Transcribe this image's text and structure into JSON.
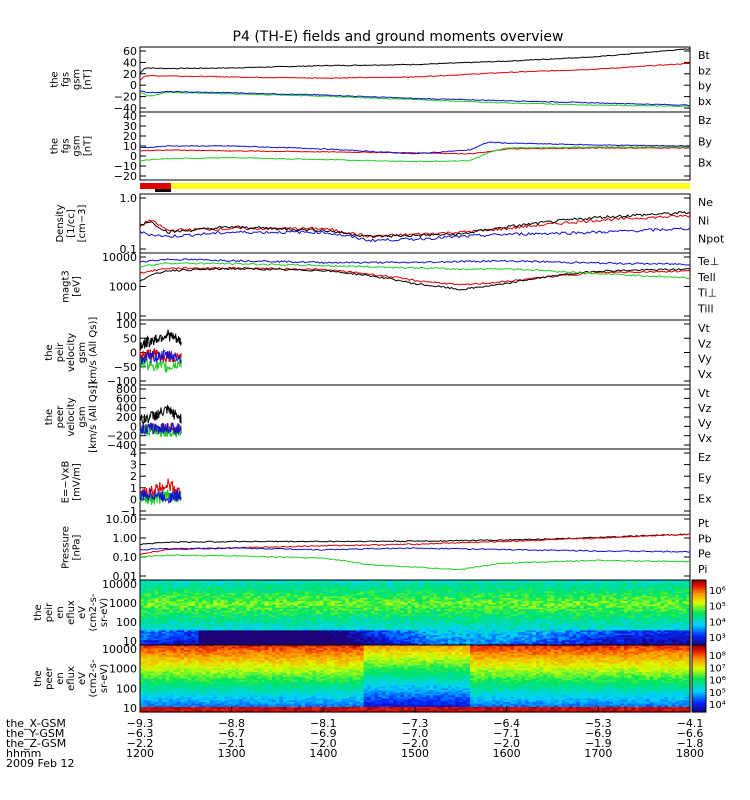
{
  "title": "P4 (TH-E) fields and ground moments overview",
  "colors": {
    "black": "#000000",
    "red": "#e00000",
    "green": "#22cc22",
    "blue": "#1010d0",
    "yellow": "#ffff20"
  },
  "chart_data": [
    {
      "type": "line",
      "id": "fgs-gsm",
      "ylabel": [
        "the",
        "fgs",
        "gsm",
        "[nT]"
      ],
      "yticks": [
        "60",
        "40",
        "20",
        "0",
        "−20",
        "−40"
      ],
      "ylim": [
        -50,
        65
      ],
      "series": [
        {
          "name": "Bt",
          "color": "#000000",
          "x": [
            1200,
            1205,
            1230,
            1300,
            1400,
            1500,
            1600,
            1700,
            1800
          ],
          "y": [
            18,
            28,
            27,
            28,
            32,
            34,
            40,
            48,
            62
          ]
        },
        {
          "name": "bz",
          "color": "#e00000",
          "x": [
            1200,
            1205,
            1230,
            1300,
            1400,
            1500,
            1600,
            1700,
            1800
          ],
          "y": [
            6,
            14,
            14,
            12,
            10,
            12,
            20,
            26,
            36
          ]
        },
        {
          "name": "by",
          "color": "#22cc22",
          "x": [
            1200,
            1210,
            1230,
            1300,
            1400,
            1500,
            1600,
            1700,
            1800
          ],
          "y": [
            -14,
            -22,
            -15,
            -18,
            -22,
            -28,
            -34,
            -38,
            -40
          ]
        },
        {
          "name": "bx",
          "color": "#1010d0",
          "x": [
            1200,
            1210,
            1230,
            1300,
            1400,
            1500,
            1600,
            1700,
            1800
          ],
          "y": [
            -12,
            -16,
            -14,
            -16,
            -20,
            -26,
            -30,
            -34,
            -38
          ]
        }
      ]
    },
    {
      "type": "line",
      "id": "fgs-gsm-ssl",
      "ylabel": [
        "the",
        "fgs",
        "gsm",
        "[nT]"
      ],
      "yticks": [
        "40",
        "30",
        "20",
        "10",
        "0",
        "−10",
        "−20"
      ],
      "ylim": [
        -25,
        45
      ],
      "series": [
        {
          "name": "Bz",
          "color": "#e00000",
          "x": [
            1200,
            1230,
            1300,
            1400,
            1500,
            1560,
            1580,
            1600,
            1700,
            1800
          ],
          "y": [
            5,
            6,
            5,
            4,
            3,
            2,
            4,
            7,
            8,
            8
          ]
        },
        {
          "name": "By",
          "color": "#22cc22",
          "x": [
            1200,
            1230,
            1300,
            1400,
            1500,
            1560,
            1580,
            1600,
            1700,
            1800
          ],
          "y": [
            -5,
            -3,
            -2,
            -4,
            -6,
            -5,
            3,
            8,
            9,
            9
          ]
        },
        {
          "name": "Bx",
          "color": "#1010d0",
          "x": [
            1200,
            1230,
            1300,
            1400,
            1500,
            1560,
            1580,
            1600,
            1700,
            1800
          ],
          "y": [
            8,
            10,
            10,
            7,
            2,
            6,
            14,
            13,
            11,
            10
          ]
        }
      ]
    },
    {
      "type": "line",
      "id": "density",
      "log": true,
      "ylabel": [
        "Density",
        "[1/cc]",
        "[cm−3]"
      ],
      "yticks": [
        "1.0",
        "0.1"
      ],
      "ylim": [
        0.1,
        1.2
      ],
      "series": [
        {
          "name": "Ne",
          "color": "#e00000",
          "x": [
            1200,
            1210,
            1230,
            1300,
            1400,
            1450,
            1500,
            1550,
            1600,
            1700,
            1800
          ],
          "y": [
            0.3,
            0.4,
            0.26,
            0.28,
            0.28,
            0.2,
            0.22,
            0.24,
            0.28,
            0.4,
            0.48
          ]
        },
        {
          "name": "Ni",
          "color": "#000000",
          "x": [
            1200,
            1210,
            1230,
            1300,
            1400,
            1450,
            1500,
            1550,
            1600,
            1700,
            1800
          ],
          "y": [
            0.32,
            0.38,
            0.24,
            0.3,
            0.26,
            0.2,
            0.21,
            0.22,
            0.3,
            0.45,
            0.55
          ]
        },
        {
          "name": "Npot",
          "color": "#1010d0",
          "x": [
            1200,
            1210,
            1230,
            1300,
            1400,
            1450,
            1500,
            1550,
            1600,
            1700,
            1800
          ],
          "y": [
            0.24,
            0.22,
            0.2,
            0.24,
            0.24,
            0.17,
            0.18,
            0.2,
            0.22,
            0.24,
            0.28
          ]
        }
      ]
    },
    {
      "type": "line",
      "id": "temp",
      "log": true,
      "ylabel": [
        "magt3",
        "[eV]"
      ],
      "yticks": [
        "10000",
        "1000",
        "100"
      ],
      "ylim": [
        100,
        10000
      ],
      "series": [
        {
          "name": "Te⊥",
          "color": "#e00000",
          "x": [
            1200,
            1230,
            1300,
            1400,
            1500,
            1550,
            1600,
            1700,
            1800
          ],
          "y": [
            2500,
            3500,
            3600,
            3200,
            1500,
            1100,
            1400,
            2600,
            2900
          ]
        },
        {
          "name": "Tell",
          "color": "#000000",
          "x": [
            1200,
            1230,
            1300,
            1400,
            1500,
            1550,
            1600,
            1700,
            1800
          ],
          "y": [
            1500,
            3000,
            3400,
            3000,
            1200,
            800,
            1200,
            2900,
            3300
          ]
        },
        {
          "name": "Ti⊥",
          "color": "#1010d0",
          "x": [
            1200,
            1230,
            1300,
            1400,
            1500,
            1550,
            1600,
            1700,
            1800
          ],
          "y": [
            5500,
            6500,
            6000,
            5200,
            5200,
            5600,
            5800,
            5000,
            4600
          ]
        },
        {
          "name": "Till",
          "color": "#22cc22",
          "x": [
            1200,
            1230,
            1300,
            1400,
            1500,
            1550,
            1600,
            1700,
            1800
          ],
          "y": [
            4000,
            5000,
            4800,
            4200,
            3600,
            3300,
            3400,
            2400,
            1800
          ]
        }
      ]
    },
    {
      "type": "line",
      "id": "peir-velocity",
      "ylabel": [
        "the",
        "peir",
        "velocity",
        "gsm",
        "[km/s (All Qs)]"
      ],
      "yticks": [
        "100",
        "50",
        "0",
        "−50",
        "−100"
      ],
      "ylim": [
        -100,
        130
      ],
      "series": [
        {
          "name": "Vt",
          "color": "#000000",
          "x": [
            1200,
            1215,
            1230,
            1245
          ],
          "y": [
            40,
            60,
            80,
            50
          ]
        },
        {
          "name": "Vz",
          "color": "#e00000",
          "x": [
            1200,
            1215,
            1230,
            1245
          ],
          "y": [
            5,
            10,
            -5,
            5
          ]
        },
        {
          "name": "Vy",
          "color": "#22cc22",
          "x": [
            1200,
            1215,
            1230,
            1245
          ],
          "y": [
            -20,
            -30,
            -40,
            -20
          ]
        },
        {
          "name": "Vx",
          "color": "#1010d0",
          "x": [
            1200,
            1215,
            1230,
            1245
          ],
          "y": [
            -10,
            0,
            5,
            -5
          ]
        }
      ]
    },
    {
      "type": "line",
      "id": "peer-velocity",
      "ylabel": [
        "the",
        "peer",
        "velocity",
        "gsm",
        "[km/s (All Qs)]"
      ],
      "yticks": [
        "800",
        "600",
        "400",
        "200",
        "0",
        "−200",
        "−400"
      ],
      "ylim": [
        -400,
        850
      ],
      "series": [
        {
          "name": "Vt",
          "color": "#000000",
          "x": [
            1200,
            1215,
            1230,
            1245
          ],
          "y": [
            150,
            250,
            350,
            200
          ]
        },
        {
          "name": "Vz",
          "color": "#e00000",
          "x": [
            1200,
            1215,
            1230,
            1245
          ],
          "y": [
            0,
            20,
            10,
            0
          ]
        },
        {
          "name": "Vy",
          "color": "#22cc22",
          "x": [
            1200,
            1215,
            1230,
            1245
          ],
          "y": [
            -30,
            -50,
            -60,
            -40
          ]
        },
        {
          "name": "Vx",
          "color": "#1010d0",
          "x": [
            1200,
            1215,
            1230,
            1245
          ],
          "y": [
            -10,
            0,
            10,
            0
          ]
        }
      ]
    },
    {
      "type": "line",
      "id": "efield",
      "ylabel": [
        "E=−VxB",
        "[mV/m]"
      ],
      "yticks": [
        "4",
        "3",
        "2",
        "1",
        "0",
        "−1"
      ],
      "ylim": [
        -1.5,
        4.2
      ],
      "series": [
        {
          "name": "Ez",
          "color": "#e00000",
          "x": [
            1200,
            1215,
            1230,
            1245
          ],
          "y": [
            0.2,
            0.6,
            1.2,
            0.3
          ]
        },
        {
          "name": "Ey",
          "color": "#22cc22",
          "x": [
            1200,
            1215,
            1230,
            1245
          ],
          "y": [
            0,
            -0.2,
            0.2,
            0
          ]
        },
        {
          "name": "Ex",
          "color": "#1010d0",
          "x": [
            1200,
            1215,
            1230,
            1245
          ],
          "y": [
            0.1,
            0.3,
            0.0,
            0.2
          ]
        }
      ]
    },
    {
      "type": "line",
      "id": "pressure",
      "log": true,
      "ylabel": [
        "Pressure",
        "[nPa]"
      ],
      "yticks": [
        "10.00",
        "1.00",
        "0.10",
        "0.01"
      ],
      "ylim": [
        0.01,
        10
      ],
      "series": [
        {
          "name": "Pt",
          "color": "#000000",
          "x": [
            1200,
            1230,
            1300,
            1400,
            1500,
            1600,
            1700,
            1800
          ],
          "y": [
            0.45,
            0.55,
            0.6,
            0.6,
            0.62,
            0.7,
            0.9,
            1.3
          ]
        },
        {
          "name": "Pb",
          "color": "#e00000",
          "x": [
            1200,
            1230,
            1300,
            1400,
            1500,
            1600,
            1700,
            1800
          ],
          "y": [
            0.15,
            0.25,
            0.3,
            0.38,
            0.45,
            0.6,
            0.85,
            1.3
          ]
        },
        {
          "name": "Pe",
          "color": "#22cc22",
          "x": [
            1200,
            1230,
            1300,
            1400,
            1450,
            1550,
            1600,
            1700,
            1800
          ],
          "y": [
            0.12,
            0.14,
            0.13,
            0.1,
            0.05,
            0.03,
            0.06,
            0.08,
            0.07
          ]
        },
        {
          "name": "Pi",
          "color": "#1010d0",
          "x": [
            1200,
            1230,
            1300,
            1400,
            1500,
            1600,
            1700,
            1800
          ],
          "y": [
            0.25,
            0.28,
            0.3,
            0.25,
            0.3,
            0.25,
            0.22,
            0.2
          ]
        }
      ]
    },
    {
      "type": "heatmap",
      "id": "peir-spec",
      "ylabel": [
        "the",
        "peir",
        "en",
        "eflux",
        "eV",
        "(cm2-s-",
        "sr-eV)"
      ],
      "yticks": [
        "10000",
        "1000",
        "100",
        "10"
      ],
      "cbar_ticks": [
        "10⁶",
        "10⁵",
        "10⁴",
        "10³"
      ]
    },
    {
      "type": "heatmap",
      "id": "peer-spec",
      "ylabel": [
        "the",
        "peer",
        "en",
        "eflux",
        "eV",
        "(cm2-s-",
        "sr-eV)"
      ],
      "yticks": [
        "10000",
        "1000",
        "100",
        "10"
      ],
      "cbar_ticks": [
        "10⁸",
        "10⁷",
        "10⁶",
        "10⁵",
        "10⁴"
      ]
    }
  ],
  "xaxis": {
    "rows": [
      {
        "label": "the_X-GSM",
        "values": [
          "−9.3",
          "−8.8",
          "−8.1",
          "−7.3",
          "−6.4",
          "−5.3",
          "−4.1"
        ]
      },
      {
        "label": "the_Y-GSM",
        "values": [
          "−6.3",
          "−6.7",
          "−6.9",
          "−7.0",
          "−7.1",
          "−6.9",
          "−6.6"
        ]
      },
      {
        "label": "the_Z-GSM",
        "values": [
          "−2.2",
          "−2.1",
          "−2.0",
          "−2.0",
          "−2.0",
          "−1.9",
          "−1.8"
        ]
      },
      {
        "label": "hhmm",
        "values": [
          "1200",
          "1300",
          "1400",
          "1500",
          "1600",
          "1700",
          "1800"
        ]
      }
    ],
    "date": "2009 Feb 12"
  }
}
